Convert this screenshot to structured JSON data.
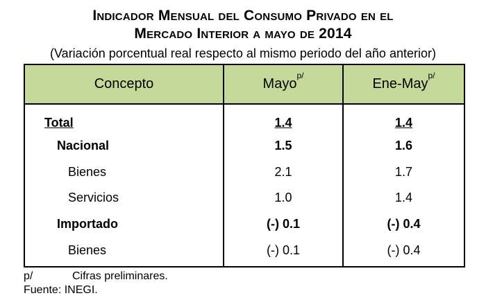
{
  "title": {
    "line1": "Indicador Mensual del Consumo Privado en el",
    "line2": "Mercado Interior a mayo de 2014",
    "subtitle": "(Variación porcentual real respecto al mismo periodo del año anterior)"
  },
  "table": {
    "header_color": "#c5d99a",
    "columns": [
      {
        "label": "Concepto",
        "sup": ""
      },
      {
        "label": "Mayo",
        "sup": "p/"
      },
      {
        "label": "Ene-May",
        "sup": "p/"
      }
    ],
    "rows": [
      {
        "concept": "Total",
        "mayo": "1.4",
        "ene_may": "1.4"
      },
      {
        "concept": "Nacional",
        "mayo": "1.5",
        "ene_may": "1.6"
      },
      {
        "concept": "Bienes",
        "mayo": "2.1",
        "ene_may": "1.7"
      },
      {
        "concept": "Servicios",
        "mayo": "1.0",
        "ene_may": "1.4"
      },
      {
        "concept": "Importado",
        "mayo": "(-) 0.1",
        "ene_may": "(-) 0.4"
      },
      {
        "concept": "Bienes",
        "mayo": "(-) 0.1",
        "ene_may": "(-) 0.4"
      }
    ]
  },
  "notes": {
    "prelim_mark": "p/",
    "prelim_text": "Cifras preliminares.",
    "source": "Fuente: INEGI."
  }
}
